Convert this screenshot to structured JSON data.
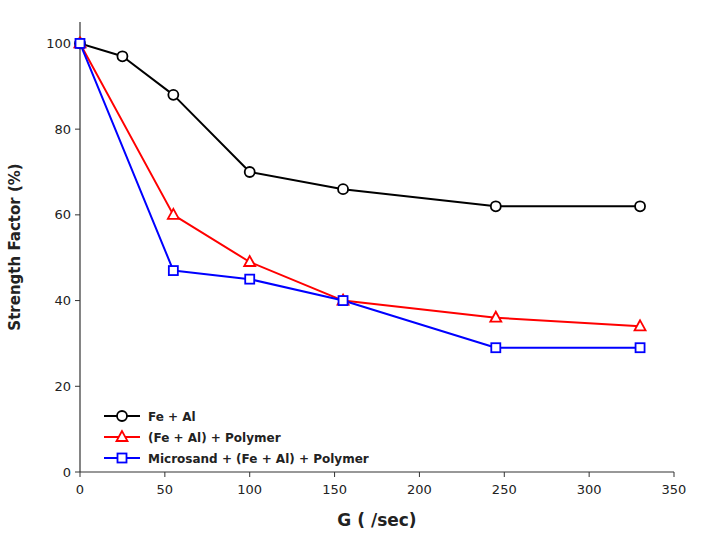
{
  "chart_data": {
    "type": "line",
    "x_label": "G ( /sec)",
    "y_label": "Strength Factor (%)",
    "series": [
      {
        "name": "Fe + Al",
        "color": "black",
        "marker": "circle",
        "x": [
          0,
          25,
          55,
          100,
          155,
          245,
          330
        ],
        "values": [
          100,
          97,
          88,
          70,
          66,
          62,
          62
        ]
      },
      {
        "name": "(Fe + Al) + Polymer",
        "color": "red",
        "marker": "triangle",
        "x": [
          0,
          55,
          100,
          155,
          245,
          330
        ],
        "values": [
          100,
          60,
          49,
          40,
          36,
          34
        ]
      },
      {
        "name": "Microsand + (Fe + Al) + Polymer",
        "color": "blue",
        "marker": "square",
        "x": [
          0,
          55,
          100,
          155,
          245,
          330
        ],
        "values": [
          100,
          47,
          45,
          40,
          29,
          29
        ]
      }
    ],
    "xlim": [
      0,
      350
    ],
    "ylim": [
      0,
      105
    ],
    "xticks": [
      0,
      50,
      100,
      150,
      200,
      250,
      300,
      350
    ],
    "yticks": [
      0,
      20,
      40,
      60,
      80,
      100
    ],
    "grid": false,
    "legend": "lower left"
  }
}
